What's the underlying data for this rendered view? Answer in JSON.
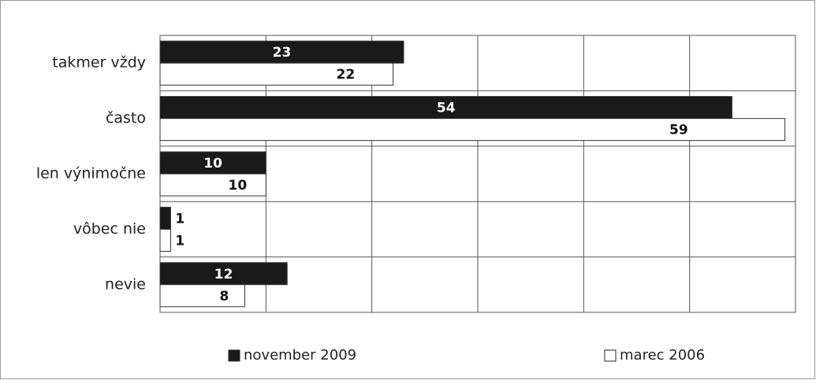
{
  "chart_data": {
    "type": "hbar",
    "categories": [
      "takmer vždy",
      "často",
      "len výnimočne",
      "vôbec nie",
      "nevie"
    ],
    "series": [
      {
        "name": "november 2009",
        "color": "#1a1a1a",
        "values": [
          23,
          54,
          10,
          1,
          12
        ]
      },
      {
        "name": "marec 2006",
        "color": "#ffffff",
        "values": [
          22,
          59,
          10,
          1,
          8
        ]
      }
    ],
    "xlim": [
      0,
      60
    ],
    "xticks": [
      0,
      10,
      20,
      30,
      40,
      50,
      60
    ],
    "grid": true,
    "legend": "bottom"
  }
}
